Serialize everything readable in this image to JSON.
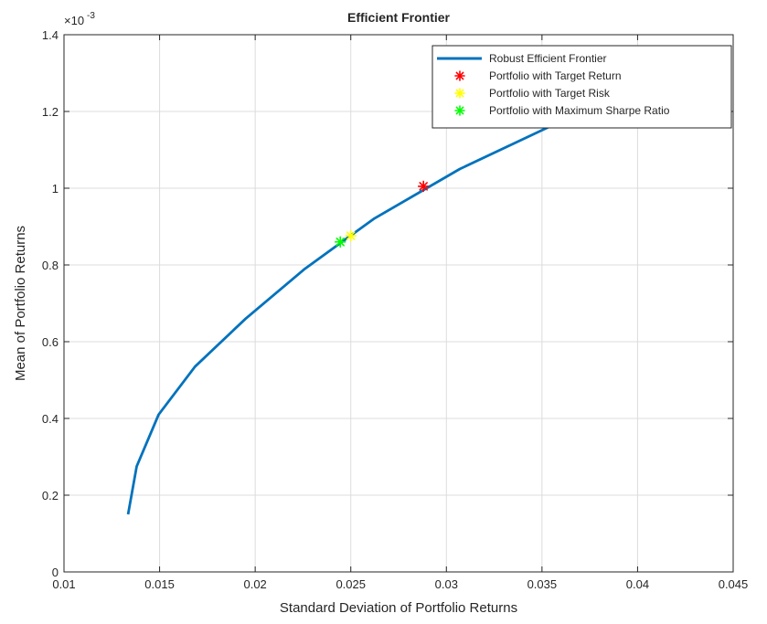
{
  "chart_data": {
    "type": "line",
    "title": "Efficient Frontier",
    "xlabel": "Standard Deviation of Portfolio Returns",
    "ylabel": "Mean of Portfolio Returns",
    "exponent_label": "×10",
    "exponent_power": "-3",
    "xlim": [
      0.01,
      0.045
    ],
    "ylim": [
      0,
      1.4
    ],
    "grid": true,
    "legend_position": "top-right",
    "x_ticks": [
      0.01,
      0.015,
      0.02,
      0.025,
      0.03,
      0.035,
      0.04,
      0.045
    ],
    "x_tick_labels": [
      "0.01",
      "0.015",
      "0.02",
      "0.025",
      "0.03",
      "0.035",
      "0.04",
      "0.045"
    ],
    "y_ticks": [
      0,
      0.2,
      0.4,
      0.6,
      0.8,
      1.0,
      1.2,
      1.4
    ],
    "y_tick_labels": [
      "0",
      "0.2",
      "0.4",
      "0.6",
      "0.8",
      "1",
      "1.2",
      "1.4"
    ],
    "series": [
      {
        "name": "Robust Efficient Frontier",
        "kind": "line",
        "color": "#0072BD",
        "x": [
          0.01335,
          0.0138,
          0.01495,
          0.01685,
          0.0195,
          0.0226,
          0.0262,
          0.0307,
          0.0358,
          0.0407,
          0.0443
        ],
        "y": [
          0.15,
          0.275,
          0.41,
          0.535,
          0.66,
          0.79,
          0.92,
          1.05,
          1.17,
          1.25,
          1.31
        ]
      },
      {
        "name": "Portfolio with Target Return",
        "kind": "marker",
        "color": "#FF0000",
        "x": [
          0.0288
        ],
        "y": [
          1.005
        ]
      },
      {
        "name": "Portfolio with Target Risk",
        "kind": "marker",
        "color": "#FFFF00",
        "x": [
          0.025
        ],
        "y": [
          0.876
        ]
      },
      {
        "name": "Portfolio with Maximum Sharpe Ratio",
        "kind": "marker",
        "color": "#00FF00",
        "x": [
          0.02445
        ],
        "y": [
          0.86
        ]
      }
    ]
  }
}
